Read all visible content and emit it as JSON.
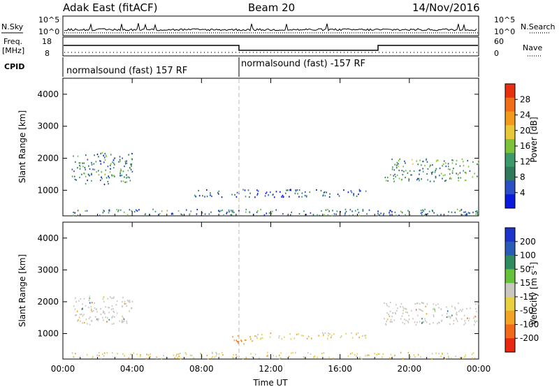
{
  "header": {
    "station": "Adak East (fitACF)",
    "beam": "Beam 20",
    "date": "14/Nov/2016"
  },
  "side_labels": {
    "nsky": "N.Sky",
    "nsearch": "N.Search",
    "freq_line1": "Freq.",
    "freq_line2": "[MHz]",
    "nave": "Nave",
    "cpid": "CPID",
    "nsky_ticks": [
      "10^5",
      "10^0"
    ],
    "freq_ticks": [
      "18",
      "8"
    ],
    "nave_ticks": [
      "60",
      "0"
    ]
  },
  "cpid_segments": [
    {
      "label": "normalsound (fast) 157 RF"
    },
    {
      "label": "normalsound (fast) -157 RF"
    }
  ],
  "colors": {
    "power_scale": [
      "#0a1adc",
      "#2b4fc4",
      "#2e7a5a",
      "#3c9a6a",
      "#7cc23a",
      "#e8c838",
      "#f39a1c",
      "#f26d18",
      "#e83010"
    ],
    "velocity_scale": [
      "#1c33cc",
      "#2a5bb8",
      "#2e8c5e",
      "#66c23a",
      "#c8c8c0",
      "#e8d040",
      "#f2a424",
      "#f06a1a",
      "#e82810"
    ]
  },
  "chart_data": [
    {
      "type": "heatmap",
      "title": "Power",
      "xlabel": "",
      "ylabel": "Slant Range [km]",
      "xlim": [
        "00:00",
        "24:00"
      ],
      "ylim": [
        200,
        4500
      ],
      "y_ticks": [
        "1000",
        "2000",
        "3000",
        "4000"
      ],
      "colorbar_label": "Power [dB]",
      "colorbar_ticks": [
        "4",
        "8",
        "12",
        "16",
        "20",
        "24",
        "28"
      ],
      "colorbar_range": [
        0,
        32
      ],
      "regions": [
        {
          "t_start": 0.5,
          "t_end": 4.0,
          "range_low": 1200,
          "range_high": 2200,
          "mean": 10
        },
        {
          "t_start": 7.5,
          "t_end": 17.5,
          "range_low": 800,
          "range_high": 1050,
          "mean": 6
        },
        {
          "t_start": 18.5,
          "t_end": 24.0,
          "range_low": 1300,
          "range_high": 2000,
          "mean": 12
        },
        {
          "t_start": 0.5,
          "t_end": 24.0,
          "range_low": 230,
          "range_high": 430,
          "mean": 9
        }
      ]
    },
    {
      "type": "heatmap",
      "title": "Velocity",
      "xlabel": "Time UT",
      "ylabel": "Slant Range [km]",
      "xlim": [
        "00:00",
        "24:00"
      ],
      "ylim": [
        200,
        4500
      ],
      "y_ticks": [
        "1000",
        "2000",
        "3000",
        "4000"
      ],
      "x_ticks": [
        "00:00",
        "04:00",
        "08:00",
        "12:00",
        "16:00",
        "20:00",
        "00:00"
      ],
      "colorbar_label": "Velocity [m s^-1]",
      "colorbar_ticks": [
        "200",
        "100",
        "50",
        "15",
        "-15",
        "-50",
        "-100",
        "-200"
      ],
      "colorbar_range": [
        -250,
        250
      ],
      "regions": [
        {
          "t_start": 0.5,
          "t_end": 4.0,
          "range_low": 1300,
          "range_high": 2200,
          "mean": 0
        },
        {
          "t_start": 9.5,
          "t_end": 11.0,
          "range_low": 700,
          "range_high": 1000,
          "mean": -80
        },
        {
          "t_start": 11.0,
          "t_end": 17.5,
          "range_low": 850,
          "range_high": 1050,
          "mean": -30
        },
        {
          "t_start": 18.5,
          "t_end": 24.0,
          "range_low": 1300,
          "range_high": 2000,
          "mean": 0
        },
        {
          "t_start": 0.5,
          "t_end": 24.0,
          "range_low": 230,
          "range_high": 430,
          "mean": -30
        }
      ]
    }
  ]
}
